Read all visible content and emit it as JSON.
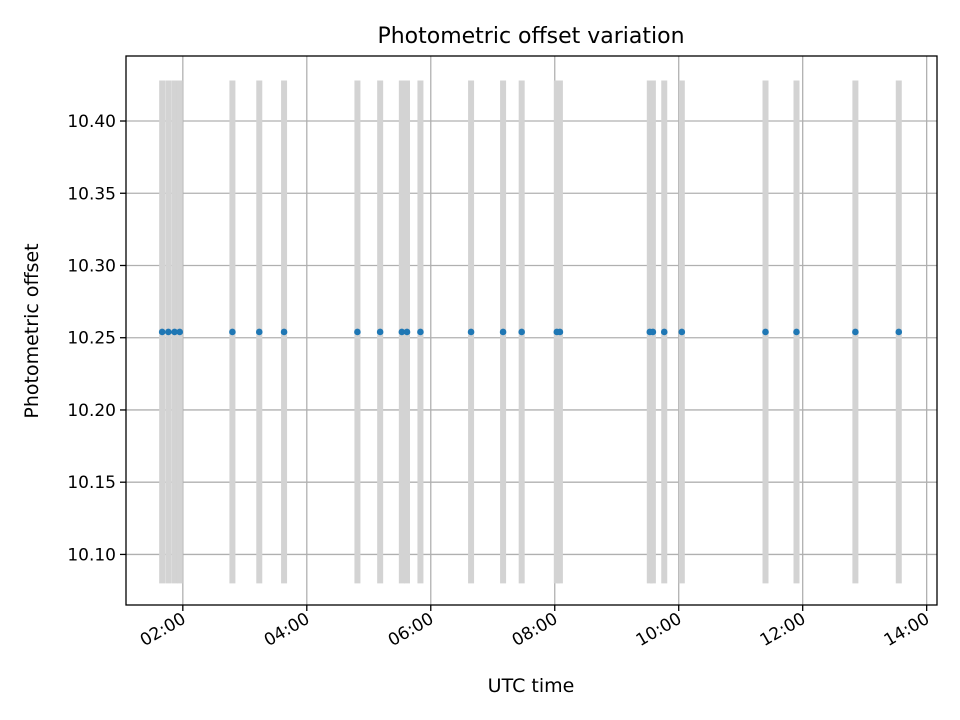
{
  "chart_data": {
    "type": "scatter",
    "title": "Photometric offset variation",
    "xlabel": "UTC time",
    "ylabel": "Photometric offset",
    "x_axis": {
      "kind": "time",
      "range": [
        "01:05",
        "14:10"
      ],
      "ticks": [
        "02:00",
        "04:00",
        "06:00",
        "08:00",
        "10:00",
        "12:00",
        "14:00"
      ]
    },
    "y_axis": {
      "range": [
        10.065,
        10.445
      ],
      "ticks": [
        "10.10",
        "10.15",
        "10.20",
        "10.25",
        "10.30",
        "10.35",
        "10.40"
      ]
    },
    "grid": true,
    "colors": {
      "points": "#1f77b4",
      "error_bars": "#d3d3d3"
    },
    "series": [
      {
        "x": [
          "01:40",
          "01:46",
          "01:52",
          "01:57",
          "02:48",
          "03:14",
          "03:38",
          "04:49",
          "05:11",
          "05:32",
          "05:37",
          "05:50",
          "06:39",
          "07:10",
          "07:28",
          "08:02",
          "08:05",
          "09:32",
          "09:35",
          "09:46",
          "10:03",
          "11:24",
          "11:54",
          "12:51",
          "13:33"
        ],
        "y": [
          10.254,
          10.254,
          10.254,
          10.254,
          10.254,
          10.254,
          10.254,
          10.254,
          10.254,
          10.254,
          10.254,
          10.254,
          10.254,
          10.254,
          10.254,
          10.254,
          10.254,
          10.254,
          10.254,
          10.254,
          10.254,
          10.254,
          10.254,
          10.254,
          10.254
        ],
        "error_low": 10.08,
        "error_high": 10.428
      }
    ]
  }
}
